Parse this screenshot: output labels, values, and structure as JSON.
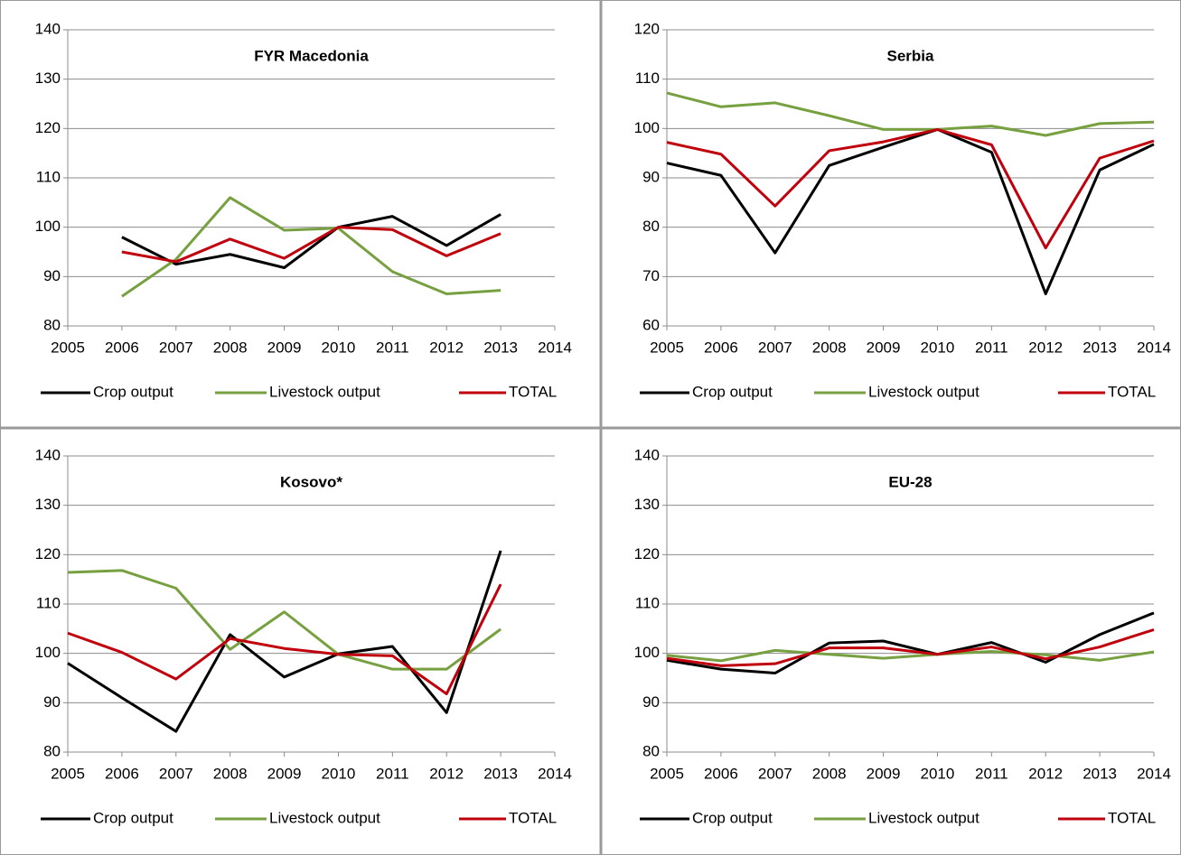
{
  "chart_data": [
    {
      "type": "line",
      "title": "FYR Macedonia",
      "x": [
        2005,
        2006,
        2007,
        2008,
        2009,
        2010,
        2011,
        2012,
        2013,
        2014
      ],
      "xlim": [
        2005,
        2014
      ],
      "xticks": [
        2005,
        2006,
        2007,
        2008,
        2009,
        2010,
        2011,
        2012,
        2013,
        2014
      ],
      "ylim": [
        80,
        140
      ],
      "yticks": [
        80,
        90,
        100,
        110,
        120,
        130,
        140
      ],
      "grid": true,
      "series": [
        {
          "name": "Crop output",
          "color": "#000000",
          "values": [
            null,
            98,
            92.5,
            94.5,
            91.8,
            100,
            102.2,
            96.3,
            102.6,
            null
          ]
        },
        {
          "name": "Livestock output",
          "color": "#77a040",
          "values": [
            null,
            86,
            93.5,
            106,
            99.4,
            99.8,
            91,
            86.5,
            87.2,
            null
          ]
        },
        {
          "name": "TOTAL",
          "color": "#c0000c",
          "values": [
            null,
            95,
            93,
            97.6,
            93.7,
            100,
            99.5,
            94.2,
            98.7,
            null
          ]
        }
      ]
    },
    {
      "type": "line",
      "title": "Serbia",
      "x": [
        2005,
        2006,
        2007,
        2008,
        2009,
        2010,
        2011,
        2012,
        2013,
        2014
      ],
      "xlim": [
        2005,
        2014
      ],
      "xticks": [
        2005,
        2006,
        2007,
        2008,
        2009,
        2010,
        2011,
        2012,
        2013,
        2014
      ],
      "ylim": [
        60,
        120
      ],
      "yticks": [
        60,
        70,
        80,
        90,
        100,
        110,
        120
      ],
      "grid": true,
      "series": [
        {
          "name": "Crop output",
          "color": "#000000",
          "values": [
            93,
            90.5,
            74.8,
            92.5,
            96.2,
            99.8,
            95.2,
            66.5,
            91.6,
            96.8
          ]
        },
        {
          "name": "Livestock output",
          "color": "#77a040",
          "values": [
            107.2,
            104.4,
            105.2,
            102.6,
            99.8,
            99.8,
            100.5,
            98.6,
            101,
            101.3
          ]
        },
        {
          "name": "TOTAL",
          "color": "#c0000c",
          "values": [
            97.2,
            94.8,
            84.3,
            95.5,
            97.3,
            99.8,
            96.7,
            75.8,
            94,
            97.5
          ]
        }
      ]
    },
    {
      "type": "line",
      "title": "Kosovo*",
      "x": [
        2005,
        2006,
        2007,
        2008,
        2009,
        2010,
        2011,
        2012,
        2013,
        2014
      ],
      "xlim": [
        2005,
        2014
      ],
      "xticks": [
        2005,
        2006,
        2007,
        2008,
        2009,
        2010,
        2011,
        2012,
        2013,
        2014
      ],
      "ylim": [
        80,
        140
      ],
      "yticks": [
        80,
        90,
        100,
        110,
        120,
        130,
        140
      ],
      "grid": true,
      "series": [
        {
          "name": "Crop output",
          "color": "#000000",
          "values": [
            98,
            91,
            84.2,
            103.8,
            95.2,
            99.9,
            101.4,
            88,
            120.8,
            null
          ]
        },
        {
          "name": "Livestock output",
          "color": "#77a040",
          "values": [
            116.4,
            116.8,
            113.2,
            100.8,
            108.4,
            99.8,
            96.8,
            96.8,
            104.9,
            null
          ]
        },
        {
          "name": "TOTAL",
          "color": "#c0000c",
          "values": [
            104.1,
            100.2,
            94.8,
            103,
            101,
            99.8,
            99.5,
            91.8,
            114,
            null
          ]
        }
      ]
    },
    {
      "type": "line",
      "title": "EU-28",
      "x": [
        2005,
        2006,
        2007,
        2008,
        2009,
        2010,
        2011,
        2012,
        2013,
        2014
      ],
      "xlim": [
        2005,
        2014
      ],
      "xticks": [
        2005,
        2006,
        2007,
        2008,
        2009,
        2010,
        2011,
        2012,
        2013,
        2014
      ],
      "ylim": [
        80,
        140
      ],
      "yticks": [
        80,
        90,
        100,
        110,
        120,
        130,
        140
      ],
      "grid": true,
      "series": [
        {
          "name": "Crop output",
          "color": "#000000",
          "values": [
            98.6,
            96.8,
            96,
            102.1,
            102.5,
            99.8,
            102.2,
            98.2,
            103.8,
            108.2
          ]
        },
        {
          "name": "Livestock output",
          "color": "#77a040",
          "values": [
            99.6,
            98.5,
            100.6,
            99.8,
            99,
            99.8,
            100.4,
            99.7,
            98.6,
            100.3
          ]
        },
        {
          "name": "TOTAL",
          "color": "#c0000c",
          "values": [
            99,
            97.5,
            97.9,
            101.1,
            101.1,
            99.8,
            101.3,
            98.9,
            101.3,
            104.8
          ]
        }
      ]
    }
  ]
}
